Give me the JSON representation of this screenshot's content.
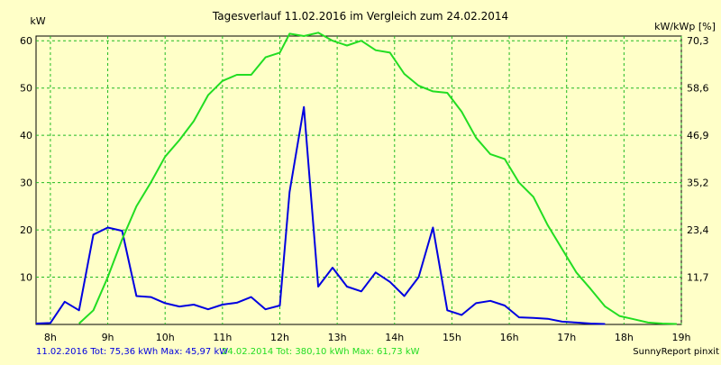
{
  "chart_data": {
    "type": "line",
    "title": "Tagesverlauf 11.02.2016 im Vergleich zum 24.02.2014",
    "ylabel_left": "kW",
    "ylabel_right": "kW/kWp [%]",
    "xlim": [
      7.75,
      19.0
    ],
    "ylim": [
      0,
      61
    ],
    "grid": true,
    "x_ticks": [
      {
        "value": 8,
        "label": "8h"
      },
      {
        "value": 9,
        "label": "9h"
      },
      {
        "value": 10,
        "label": "10h"
      },
      {
        "value": 11,
        "label": "11h"
      },
      {
        "value": 12,
        "label": "12h"
      },
      {
        "value": 13,
        "label": "13h"
      },
      {
        "value": 14,
        "label": "14h"
      },
      {
        "value": 15,
        "label": "15h"
      },
      {
        "value": 16,
        "label": "16h"
      },
      {
        "value": 17,
        "label": "17h"
      },
      {
        "value": 18,
        "label": "18h"
      },
      {
        "value": 19,
        "label": "19h"
      }
    ],
    "y_ticks_left": [
      {
        "value": 10,
        "label": "10"
      },
      {
        "value": 20,
        "label": "20"
      },
      {
        "value": 30,
        "label": "30"
      },
      {
        "value": 40,
        "label": "40"
      },
      {
        "value": 50,
        "label": "50"
      },
      {
        "value": 60,
        "label": "60"
      }
    ],
    "y_ticks_right": [
      {
        "value": 10,
        "label": "11,7"
      },
      {
        "value": 20,
        "label": "23,4"
      },
      {
        "value": 30,
        "label": "35,2"
      },
      {
        "value": 40,
        "label": "46,9"
      },
      {
        "value": 50,
        "label": "58,6"
      },
      {
        "value": 60,
        "label": "70,3"
      }
    ],
    "series": [
      {
        "name": "11.02.2016 Tot: 75,36 kWh Max: 45,97 kW",
        "color": "#0000e0",
        "x": [
          7.75,
          8.0,
          8.25,
          8.5,
          8.75,
          9.0,
          9.25,
          9.5,
          9.75,
          10.0,
          10.25,
          10.5,
          10.75,
          11.0,
          11.25,
          11.5,
          11.75,
          12.0,
          12.17,
          12.42,
          12.67,
          12.92,
          13.17,
          13.42,
          13.67,
          13.92,
          14.17,
          14.42,
          14.67,
          14.92,
          15.17,
          15.42,
          15.67,
          15.92,
          16.17,
          16.42,
          16.67,
          16.92,
          17.17,
          17.42,
          17.67
        ],
        "values": [
          0.2,
          0.3,
          4.8,
          3.0,
          19.0,
          20.5,
          19.8,
          6.0,
          5.8,
          4.5,
          3.8,
          4.2,
          3.2,
          4.2,
          4.6,
          5.8,
          3.2,
          4.0,
          28.0,
          46.0,
          8.0,
          12.0,
          8.0,
          7.0,
          11.0,
          9.0,
          6.0,
          10.0,
          20.5,
          3.0,
          2.0,
          4.5,
          5.0,
          4.0,
          1.5,
          1.4,
          1.2,
          0.6,
          0.4,
          0.2,
          0.1
        ]
      },
      {
        "name": "24.02.2014 Tot: 380,10 kWh Max: 61,73 kW",
        "color": "#22dd22",
        "x": [
          8.5,
          8.75,
          9.0,
          9.25,
          9.5,
          9.75,
          10.0,
          10.25,
          10.5,
          10.75,
          11.0,
          11.25,
          11.5,
          11.75,
          12.0,
          12.17,
          12.42,
          12.67,
          12.92,
          13.17,
          13.42,
          13.67,
          13.92,
          14.17,
          14.42,
          14.67,
          14.92,
          15.17,
          15.42,
          15.67,
          15.92,
          16.17,
          16.42,
          16.67,
          16.92,
          17.17,
          17.42,
          17.67,
          17.92,
          18.17,
          18.42,
          18.67,
          18.92
        ],
        "values": [
          0.2,
          3.0,
          10.0,
          18.0,
          25.0,
          30.0,
          35.5,
          39.0,
          43.0,
          48.5,
          51.5,
          52.8,
          52.8,
          56.5,
          57.5,
          61.5,
          61.0,
          61.7,
          60.0,
          59.0,
          60.0,
          58.0,
          57.5,
          53.0,
          50.5,
          49.3,
          49.0,
          45.0,
          39.5,
          36.0,
          35.0,
          30.0,
          27.0,
          21.0,
          16.0,
          11.0,
          7.5,
          3.8,
          1.8,
          1.1,
          0.4,
          0.2,
          0.1
        ]
      }
    ]
  },
  "footer": {
    "legend_1": "11.02.2016 Tot: 75,36 kWh Max: 45,97 kW",
    "legend_2": "24.02.2014 Tot: 380,10 kWh Max: 61,73 kW",
    "credit": "SunnyReport pinxit"
  },
  "colors": {
    "background": "#ffffc8",
    "grid": "#22bb22",
    "series_1": "#0000e0",
    "series_2": "#22dd22"
  }
}
